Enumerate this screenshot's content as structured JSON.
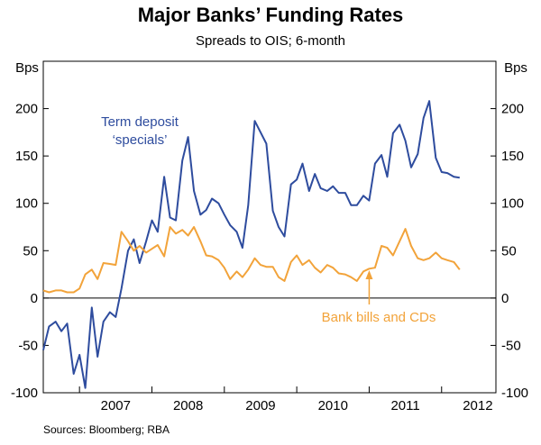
{
  "chart_data": {
    "type": "line",
    "title": "Major Banks’ Funding Rates",
    "subtitle": "Spreads to OIS; 6-month",
    "y_unit_left": "Bps",
    "y_unit_right": "Bps",
    "ylim": [
      -100,
      250
    ],
    "yticks": [
      -100,
      -50,
      0,
      50,
      100,
      150,
      200
    ],
    "xlim": [
      2006.5,
      2012.75
    ],
    "xtick_years": [
      "2007",
      "2008",
      "2009",
      "2010",
      "2011",
      "2012"
    ],
    "grid": false,
    "source": "Sources: Bloomberg; RBA",
    "series": [
      {
        "name": "Term deposit ‘specials’",
        "label_lines": [
          "Term deposit",
          "‘specials’"
        ],
        "color": "#2e4c9e",
        "x": [
          2006.5,
          2006.58,
          2006.67,
          2006.75,
          2006.83,
          2006.92,
          2007.0,
          2007.08,
          2007.17,
          2007.25,
          2007.33,
          2007.42,
          2007.5,
          2007.58,
          2007.67,
          2007.75,
          2007.83,
          2007.92,
          2008.0,
          2008.08,
          2008.17,
          2008.25,
          2008.33,
          2008.42,
          2008.5,
          2008.58,
          2008.67,
          2008.75,
          2008.83,
          2008.92,
          2009.0,
          2009.08,
          2009.17,
          2009.25,
          2009.33,
          2009.42,
          2009.5,
          2009.58,
          2009.67,
          2009.75,
          2009.83,
          2009.92,
          2010.0,
          2010.08,
          2010.17,
          2010.25,
          2010.33,
          2010.42,
          2010.5,
          2010.58,
          2010.67,
          2010.75,
          2010.83,
          2010.92,
          2011.0,
          2011.08,
          2011.17,
          2011.25,
          2011.33,
          2011.42,
          2011.5,
          2011.58,
          2011.67,
          2011.75,
          2011.83,
          2011.92,
          2012.0,
          2012.08,
          2012.17,
          2012.25
        ],
        "y": [
          -55,
          -30,
          -25,
          -35,
          -27,
          -80,
          -60,
          -95,
          -10,
          -62,
          -25,
          -15,
          -20,
          10,
          50,
          62,
          37,
          60,
          82,
          70,
          128,
          85,
          82,
          145,
          170,
          113,
          88,
          93,
          105,
          100,
          88,
          77,
          70,
          53,
          98,
          187,
          175,
          163,
          92,
          75,
          65,
          120,
          125,
          142,
          113,
          131,
          116,
          113,
          118,
          111,
          111,
          98,
          98,
          108,
          103,
          142,
          151,
          128,
          174,
          183,
          166,
          138,
          152,
          190,
          208,
          148,
          133,
          132,
          128,
          127
        ]
      },
      {
        "name": "Bank bills and CDs",
        "label_lines": [
          "Bank bills and CDs"
        ],
        "color": "#f2a33a",
        "x": [
          2006.5,
          2006.58,
          2006.67,
          2006.75,
          2006.83,
          2006.92,
          2007.0,
          2007.08,
          2007.17,
          2007.25,
          2007.33,
          2007.42,
          2007.5,
          2007.58,
          2007.67,
          2007.75,
          2007.83,
          2007.92,
          2008.0,
          2008.08,
          2008.17,
          2008.25,
          2008.33,
          2008.42,
          2008.5,
          2008.58,
          2008.67,
          2008.75,
          2008.83,
          2008.92,
          2009.0,
          2009.08,
          2009.17,
          2009.25,
          2009.33,
          2009.42,
          2009.5,
          2009.58,
          2009.67,
          2009.75,
          2009.83,
          2009.92,
          2010.0,
          2010.08,
          2010.17,
          2010.25,
          2010.33,
          2010.42,
          2010.5,
          2010.58,
          2010.67,
          2010.75,
          2010.83,
          2010.92,
          2011.0,
          2011.08,
          2011.17,
          2011.25,
          2011.33,
          2011.42,
          2011.5,
          2011.58,
          2011.67,
          2011.75,
          2011.83,
          2011.92,
          2012.0,
          2012.08,
          2012.17,
          2012.25
        ],
        "y": [
          8,
          6,
          8,
          8,
          6,
          6,
          10,
          25,
          30,
          20,
          37,
          36,
          35,
          70,
          60,
          50,
          55,
          48,
          52,
          56,
          44,
          75,
          68,
          72,
          66,
          75,
          60,
          45,
          44,
          40,
          32,
          20,
          28,
          22,
          30,
          42,
          35,
          33,
          33,
          22,
          18,
          38,
          45,
          35,
          40,
          32,
          27,
          35,
          32,
          26,
          25,
          22,
          18,
          28,
          31,
          32,
          55,
          53,
          45,
          60,
          73,
          55,
          42,
          40,
          42,
          48,
          42,
          40,
          38,
          30
        ]
      }
    ],
    "annotations": [
      {
        "text": "Term deposit ‘specials’",
        "series": "Term deposit ‘specials’"
      },
      {
        "text": "Bank bills and CDs",
        "series": "Bank bills and CDs",
        "arrow": true
      }
    ]
  }
}
